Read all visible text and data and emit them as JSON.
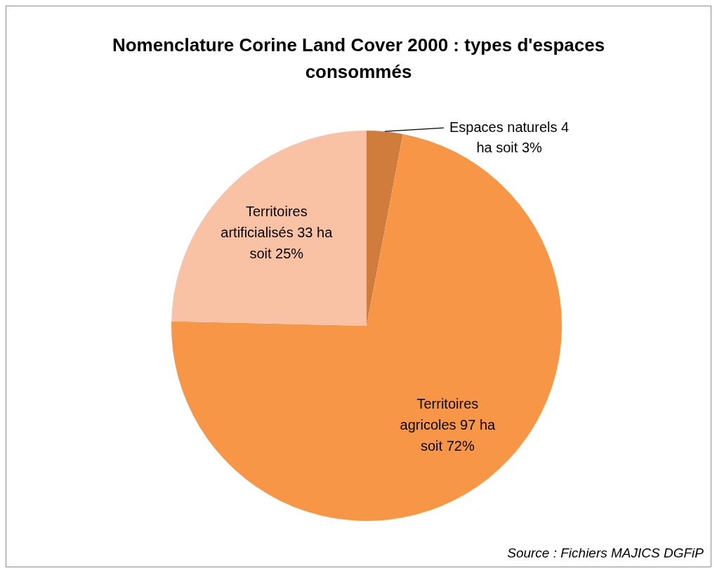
{
  "chart_data": {
    "type": "pie",
    "title": "Nomenclature Corine Land Cover 2000 : types d'espaces consommés",
    "categories": [
      "Espaces naturels",
      "Territoires agricoles",
      "Territoires artificialisés"
    ],
    "values": [
      4,
      97,
      33
    ],
    "colors": [
      "#d07c3c",
      "#f79646",
      "#f9c2a5"
    ],
    "value_labels": [
      "4 ha soit 3%",
      "97 ha soit 72%",
      "33 ha soit 25%"
    ],
    "annotations": [
      "Source : Fichiers MAJICS DGFiP"
    ]
  }
}
